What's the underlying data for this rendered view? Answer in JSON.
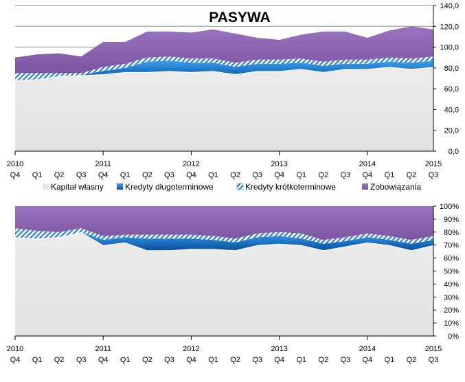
{
  "chart_data": [
    {
      "type": "area",
      "stacked": true,
      "title": "PASYWA",
      "x_year_labels": [
        "2010",
        "2011",
        "2012",
        "2013",
        "2014",
        "2015"
      ],
      "x": [
        "Q4",
        "Q1",
        "Q2",
        "Q3",
        "Q4",
        "Q1",
        "Q2",
        "Q3",
        "Q4",
        "Q1",
        "Q2",
        "Q3",
        "Q4",
        "Q1",
        "Q2",
        "Q3",
        "Q4",
        "Q1",
        "Q2",
        "Q3"
      ],
      "ylim": [
        0,
        140
      ],
      "y_ticks": [
        "0,0",
        "20,0",
        "40,0",
        "60,0",
        "80,0",
        "100,0",
        "120,0",
        "140,0"
      ],
      "grid": true,
      "series": [
        {
          "name": "Kapitał własny",
          "color": "#e6e6e6",
          "values": [
            68,
            69,
            72,
            73,
            74,
            76,
            76,
            77,
            76,
            77,
            74,
            77,
            77,
            79,
            76,
            79,
            79,
            81,
            79,
            81
          ]
        },
        {
          "name": "Kredyty długoterminowe",
          "color": "#1a6fc4",
          "values": [
            0,
            0,
            0,
            0,
            3,
            4,
            10,
            10,
            9,
            8,
            7,
            7,
            7,
            6,
            6,
            5,
            5,
            5,
            6,
            6
          ]
        },
        {
          "name": "Kredyty krótkoterminowe",
          "color": "#8ab4d8",
          "values": [
            7,
            6,
            3,
            2,
            4,
            4,
            4,
            4,
            4,
            4,
            4,
            4,
            4,
            4,
            4,
            4,
            4,
            4,
            4,
            4
          ]
        },
        {
          "name": "Zobowiązania",
          "color": "#8e63b0",
          "values": [
            15,
            18,
            19,
            16,
            24,
            21,
            25,
            24,
            25,
            28,
            28,
            21,
            19,
            23,
            29,
            27,
            21,
            26,
            31,
            26
          ]
        }
      ]
    },
    {
      "type": "area",
      "stacked": true,
      "percent": true,
      "x_year_labels": [
        "2010",
        "2011",
        "2012",
        "2013",
        "2014",
        "2015"
      ],
      "x": [
        "Q4",
        "Q1",
        "Q2",
        "Q3",
        "Q4",
        "Q1",
        "Q2",
        "Q3",
        "Q4",
        "Q1",
        "Q2",
        "Q3",
        "Q4",
        "Q1",
        "Q2",
        "Q3",
        "Q4",
        "Q1",
        "Q2",
        "Q3"
      ],
      "ylim": [
        0,
        100
      ],
      "y_ticks": [
        "0%",
        "10%",
        "20%",
        "30%",
        "40%",
        "50%",
        "60%",
        "70%",
        "80%",
        "90%",
        "100%"
      ],
      "series": [
        {
          "name": "Kapitał własny",
          "color": "#e6e6e6",
          "values": [
            76,
            75,
            76,
            80,
            70,
            72,
            66,
            66,
            67,
            67,
            66,
            70,
            71,
            70,
            66,
            69,
            72,
            70,
            66,
            70
          ]
        },
        {
          "name": "Kredyty długoterminowe",
          "color": "#1a6fc4",
          "values": [
            0,
            0,
            0,
            0,
            4,
            4,
            9,
            9,
            8,
            7,
            6,
            6,
            6,
            5,
            5,
            4,
            4,
            4,
            5,
            4
          ]
        },
        {
          "name": "Kredyty krótkoterminowe",
          "color": "#8ab4d8",
          "values": [
            7,
            6,
            4,
            3,
            3,
            2,
            3,
            3,
            3,
            3,
            3,
            3,
            3,
            4,
            3,
            3,
            3,
            3,
            3,
            3
          ]
        },
        {
          "name": "Zobowiązania",
          "color": "#8e63b0",
          "values": [
            17,
            19,
            20,
            17,
            23,
            22,
            22,
            22,
            22,
            23,
            25,
            21,
            20,
            21,
            26,
            24,
            21,
            23,
            26,
            23
          ]
        }
      ]
    }
  ]
}
